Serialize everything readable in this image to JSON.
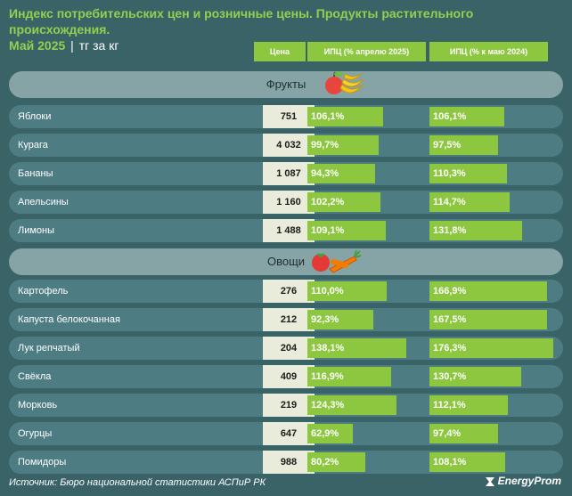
{
  "title": {
    "main": "Индекс потребительских цен и розничные цены. Продукты растительного происхождения.",
    "date": "Май 2025",
    "unit": "тг за кг"
  },
  "headers": {
    "price": "Цена",
    "cpi_april": "ИПЦ (% апрелю 2025)",
    "cpi_year": "ИПЦ (% к маю 2024)"
  },
  "sections": {
    "fruits": {
      "label": "Фрукты",
      "icon": "fruit-icon"
    },
    "vegetables": {
      "label": "Овощи",
      "icon": "vegetable-icon"
    }
  },
  "footer": {
    "source": "Источник: Бюро национальной статистики АСПиР РК",
    "brand": "EnergyProm"
  },
  "colors": {
    "background": "#3a6368",
    "accent": "#8dc63f",
    "row": "#4d7d83",
    "section": "#86a3a6",
    "price_cell": "#e9ecda"
  },
  "chart_data": {
    "type": "table",
    "title": "Индекс потребительских цен и розничные цены. Продукты растительного происхождения. Май 2025",
    "columns": [
      "Цена",
      "ИПЦ (% апрелю 2025)",
      "ИПЦ (% к маю 2024)"
    ],
    "groups": [
      {
        "name": "Фрукты",
        "rows": [
          {
            "name": "Яблоки",
            "price": "751",
            "cpi_april": 106.1,
            "cpi_year": 106.1
          },
          {
            "name": "Курага",
            "price": "4 032",
            "cpi_april": 99.7,
            "cpi_year": 97.5
          },
          {
            "name": "Бананы",
            "price": "1 087",
            "cpi_april": 94.3,
            "cpi_year": 110.3
          },
          {
            "name": "Апельсины",
            "price": "1 160",
            "cpi_april": 102.2,
            "cpi_year": 114.7
          },
          {
            "name": "Лимоны",
            "price": "1 488",
            "cpi_april": 109.1,
            "cpi_year": 131.8
          }
        ]
      },
      {
        "name": "Овощи",
        "rows": [
          {
            "name": "Картофель",
            "price": "276",
            "cpi_april": 110.0,
            "cpi_year": 166.9
          },
          {
            "name": "Капуста белокочанная",
            "price": "212",
            "cpi_april": 92.3,
            "cpi_year": 167.5
          },
          {
            "name": "Лук репчатый",
            "price": "204",
            "cpi_april": 138.1,
            "cpi_year": 176.3
          },
          {
            "name": "Свёкла",
            "price": "409",
            "cpi_april": 116.9,
            "cpi_year": 130.7
          },
          {
            "name": "Морковь",
            "price": "219",
            "cpi_april": 124.3,
            "cpi_year": 112.1
          },
          {
            "name": "Огурцы",
            "price": "647",
            "cpi_april": 62.9,
            "cpi_year": 97.4
          },
          {
            "name": "Помидоры",
            "price": "988",
            "cpi_april": 80.2,
            "cpi_year": 108.1
          }
        ]
      }
    ]
  }
}
